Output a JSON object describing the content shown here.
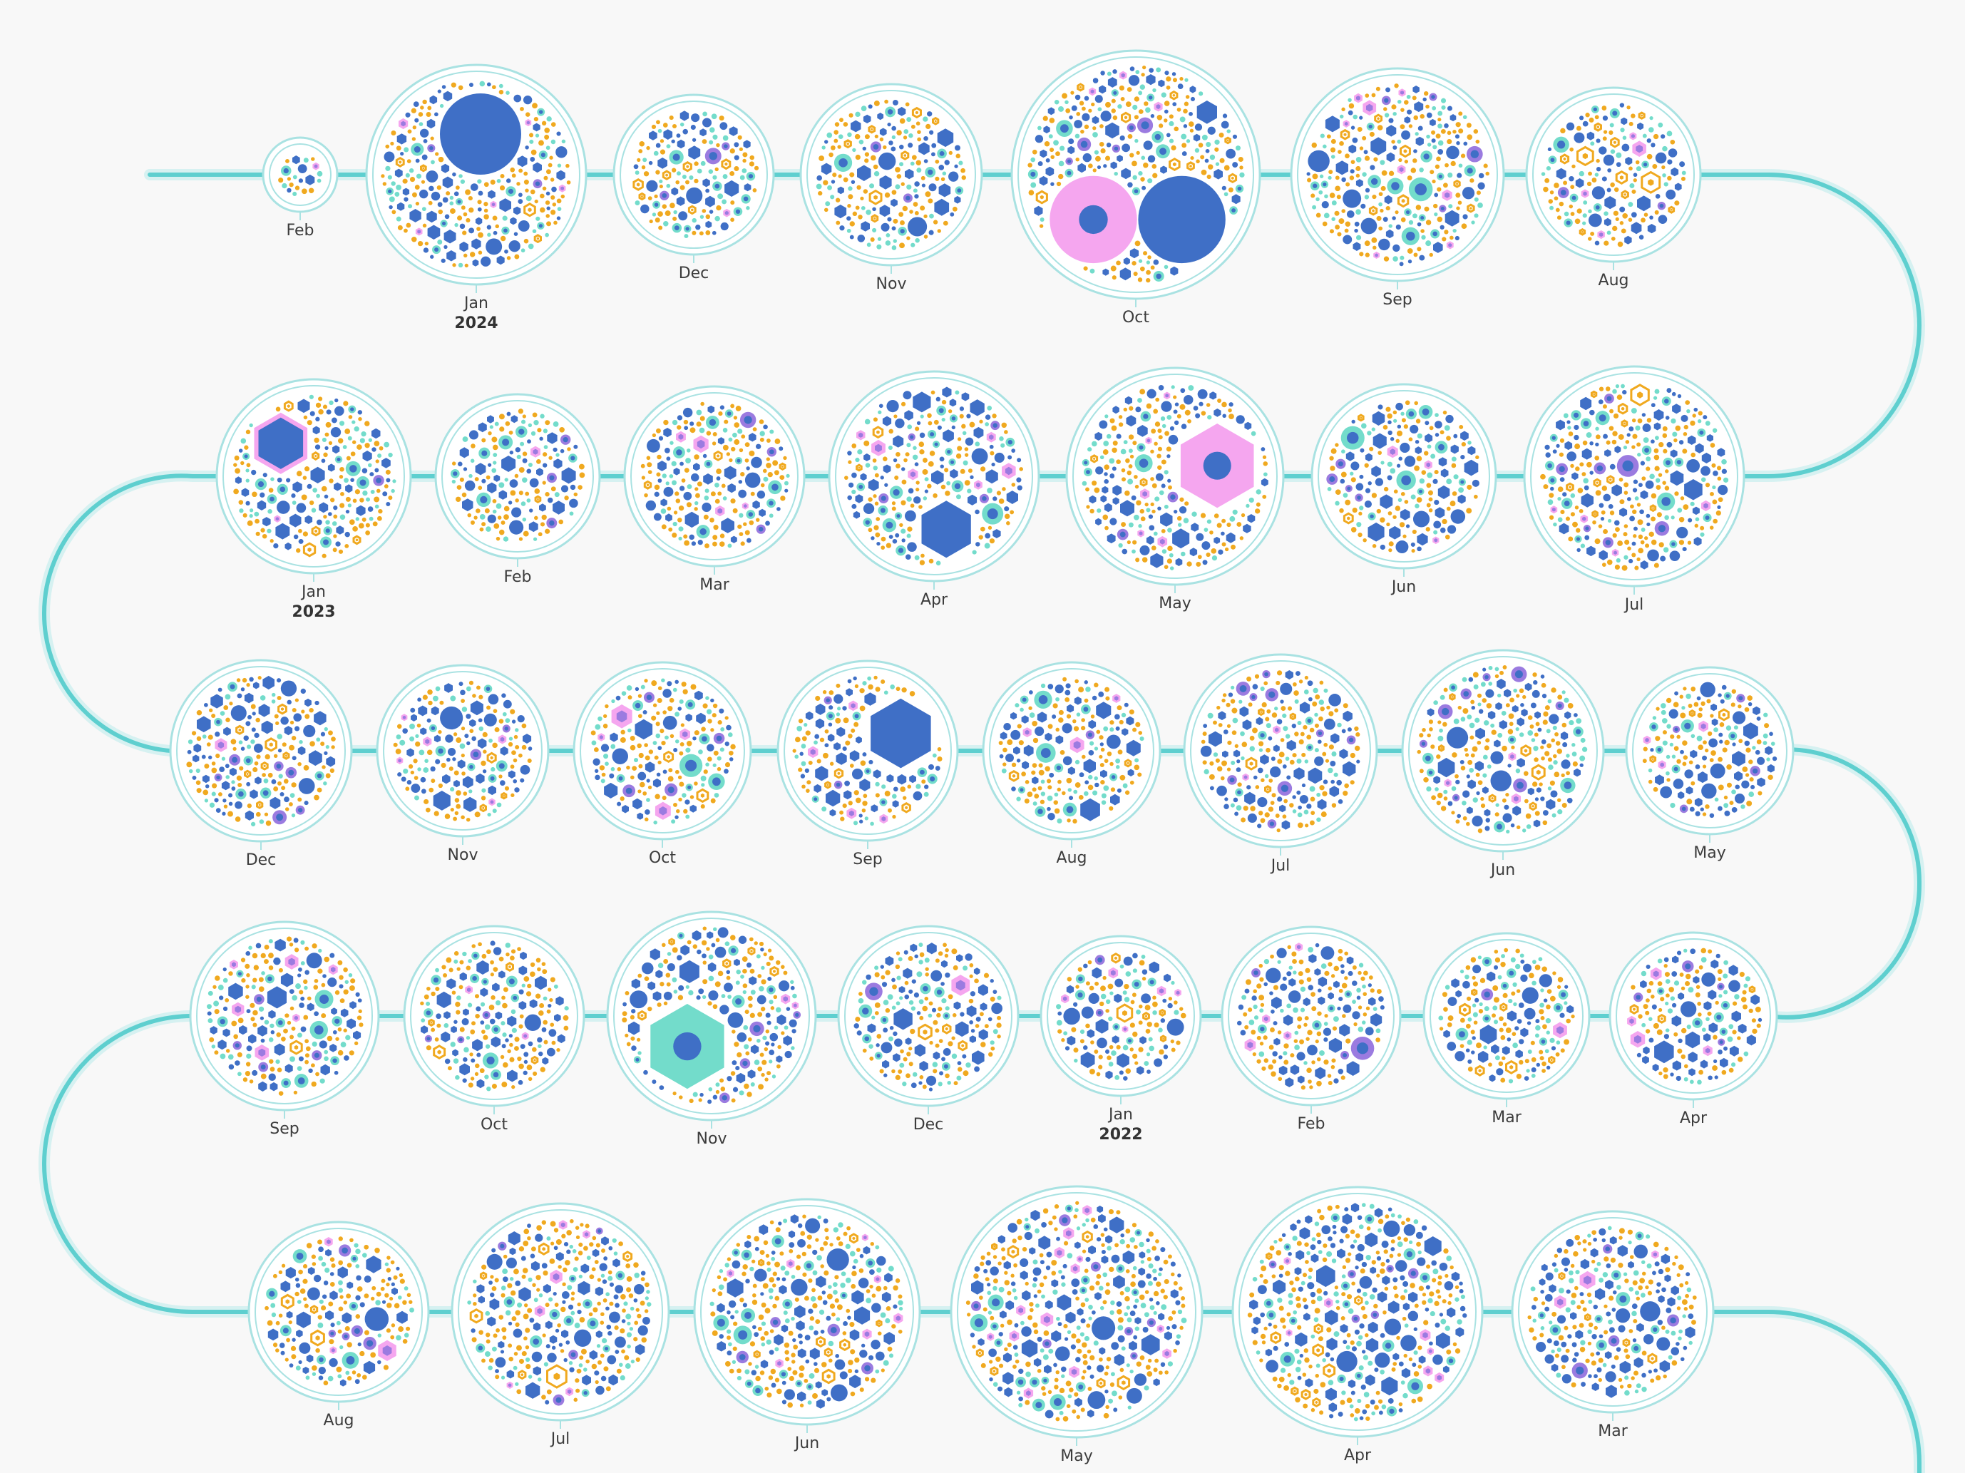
{
  "colors": {
    "background": "#f8f8f8",
    "path": "#5ecfcf",
    "path_halo": "#d6f1f1",
    "ring": "#a9e2e2",
    "blue": "#3f6fc6",
    "teal": "#73dccb",
    "pink": "#f5a6ef",
    "purple": "#9b7be0",
    "orange": "#f0a91f"
  },
  "months": [
    {
      "label": "Feb",
      "year": "",
      "size": 0.28
    },
    {
      "label": "Jan",
      "year": "2024",
      "size": 0.88,
      "big": [
        {
          "shape": "circle",
          "color": "blue",
          "fx": 0.04,
          "fy": -0.38,
          "fr": 0.38
        }
      ]
    },
    {
      "label": "Dec",
      "year": "",
      "size": 0.62
    },
    {
      "label": "Nov",
      "year": "",
      "size": 0.72
    },
    {
      "label": "Oct",
      "year": "",
      "size": 1.0,
      "big": [
        {
          "shape": "circle",
          "color": "pink",
          "fx": -0.35,
          "fy": 0.37,
          "fr": 0.36,
          "dot": "blue"
        },
        {
          "shape": "circle",
          "color": "blue",
          "fx": 0.38,
          "fy": 0.37,
          "fr": 0.36
        }
      ]
    },
    {
      "label": "Sep",
      "year": "",
      "size": 0.84
    },
    {
      "label": "Aug",
      "year": "",
      "size": 0.68
    },
    {
      "label": "Jan",
      "year": "2023",
      "size": 0.76,
      "big": [
        {
          "shape": "hex",
          "color": "blue",
          "fx": -0.35,
          "fy": -0.35,
          "fr": 0.3,
          "stroke": "pink"
        }
      ]
    },
    {
      "label": "Feb",
      "year": "",
      "size": 0.64
    },
    {
      "label": "Mar",
      "year": "",
      "size": 0.7
    },
    {
      "label": "Apr",
      "year": "",
      "size": 0.82,
      "big": [
        {
          "shape": "hex",
          "color": "blue",
          "fx": 0.12,
          "fy": 0.52,
          "fr": 0.28
        }
      ]
    },
    {
      "label": "May",
      "year": "",
      "size": 0.86,
      "big": [
        {
          "shape": "hex",
          "color": "pink",
          "fx": 0.4,
          "fy": -0.1,
          "fr": 0.4,
          "dot": "blue"
        }
      ]
    },
    {
      "label": "Jun",
      "year": "",
      "size": 0.72
    },
    {
      "label": "Jul",
      "year": "",
      "size": 0.88
    },
    {
      "label": "Dec",
      "year": "",
      "size": 0.72
    },
    {
      "label": "Nov",
      "year": "",
      "size": 0.66
    },
    {
      "label": "Oct",
      "year": "",
      "size": 0.7
    },
    {
      "label": "Sep",
      "year": "",
      "size": 0.72,
      "big": [
        {
          "shape": "hex",
          "color": "blue",
          "fx": 0.38,
          "fy": -0.2,
          "fr": 0.4
        }
      ]
    },
    {
      "label": "Aug",
      "year": "",
      "size": 0.7
    },
    {
      "label": "Jul",
      "year": "",
      "size": 0.76
    },
    {
      "label": "Jun",
      "year": "",
      "size": 0.8
    },
    {
      "label": "May",
      "year": "",
      "size": 0.66
    },
    {
      "label": "Sep",
      "year": "",
      "size": 0.74
    },
    {
      "label": "Oct",
      "year": "",
      "size": 0.7
    },
    {
      "label": "Nov",
      "year": "",
      "size": 0.84,
      "big": [
        {
          "shape": "hex",
          "color": "teal",
          "fx": -0.24,
          "fy": 0.3,
          "fr": 0.42,
          "dot": "blue"
        }
      ]
    },
    {
      "label": "Dec",
      "year": "",
      "size": 0.7
    },
    {
      "label": "Jan",
      "year": "2022",
      "size": 0.62
    },
    {
      "label": "Feb",
      "year": "",
      "size": 0.7
    },
    {
      "label": "Mar",
      "year": "",
      "size": 0.64
    },
    {
      "label": "Apr",
      "year": "",
      "size": 0.66
    },
    {
      "label": "Aug",
      "year": "",
      "size": 0.7
    },
    {
      "label": "Jul",
      "year": "",
      "size": 0.86
    },
    {
      "label": "Jun",
      "year": "",
      "size": 0.9
    },
    {
      "label": "May",
      "year": "",
      "size": 1.0
    },
    {
      "label": "Apr",
      "year": "",
      "size": 0.98
    },
    {
      "label": "Mar",
      "year": "",
      "size": 0.8
    }
  ]
}
